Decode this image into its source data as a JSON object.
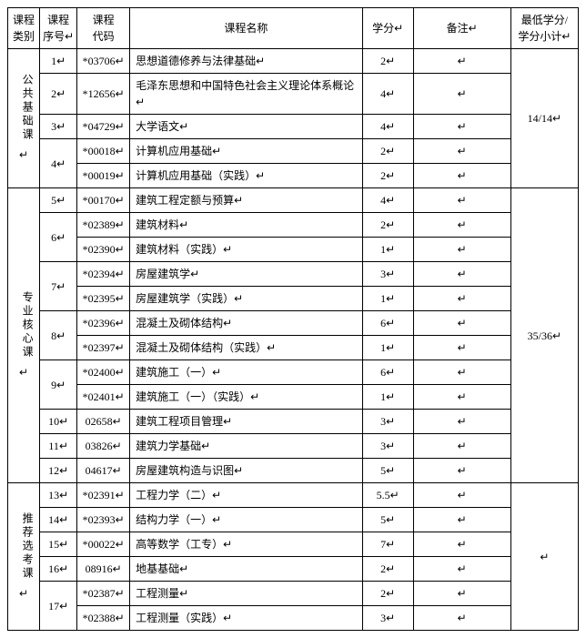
{
  "headers": {
    "category": "课程\n类别",
    "seq": "课程\n序号",
    "code": "课程\n代码",
    "name": "课程名称",
    "credit": "学分",
    "note": "备注",
    "subtotal": "最低学分/\n学分小计"
  },
  "enter_mark": "↵",
  "categories": [
    {
      "label": "公共基础课",
      "subtotal": "14/14",
      "rows": [
        {
          "seq": "1",
          "code": "*03706",
          "name": "思想道德修养与法律基础",
          "credit": "2",
          "note": ""
        },
        {
          "seq": "2",
          "code": "*12656",
          "name": "毛泽东思想和中国特色社会主义理论体系概论",
          "credit": "4",
          "note": ""
        },
        {
          "seq": "3",
          "code": "*04729",
          "name": "大学语文",
          "credit": "4",
          "note": ""
        },
        {
          "seq": "4",
          "seq_span": 2,
          "code": "*00018",
          "name": "计算机应用基础",
          "credit": "2",
          "note": ""
        },
        {
          "code": "*00019",
          "name": "计算机应用基础（实践）",
          "credit": "2",
          "note": ""
        }
      ]
    },
    {
      "label": "专业核心课",
      "subtotal": "35/36",
      "rows": [
        {
          "seq": "5",
          "code": "*00170",
          "name": "建筑工程定额与预算",
          "credit": "4",
          "note": ""
        },
        {
          "seq": "6",
          "seq_span": 2,
          "code": "*02389",
          "name": "建筑材料",
          "credit": "2",
          "note": ""
        },
        {
          "code": "*02390",
          "name": "建筑材料（实践）",
          "credit": "1",
          "note": ""
        },
        {
          "seq": "7",
          "seq_span": 2,
          "code": "*02394",
          "name": "房屋建筑学",
          "credit": "3",
          "note": ""
        },
        {
          "code": "*02395",
          "name": "房屋建筑学（实践）",
          "credit": "1",
          "note": ""
        },
        {
          "seq": "8",
          "seq_span": 2,
          "code": "*02396",
          "name": "混凝土及砌体结构",
          "credit": "6",
          "note": ""
        },
        {
          "code": "*02397",
          "name": "混凝土及砌体结构（实践）",
          "credit": "1",
          "note": ""
        },
        {
          "seq": "9",
          "seq_span": 2,
          "code": "*02400",
          "name": "建筑施工（一）",
          "credit": "6",
          "note": ""
        },
        {
          "code": "*02401",
          "name": "建筑施工（一）（实践）",
          "credit": "1",
          "note": ""
        },
        {
          "seq": "10",
          "code": "02658",
          "name": "建筑工程项目管理",
          "credit": "3",
          "note": ""
        },
        {
          "seq": "11",
          "code": "03826",
          "name": "建筑力学基础",
          "credit": "3",
          "note": ""
        },
        {
          "seq": "12",
          "code": "04617",
          "name": "房屋建筑构造与识图",
          "credit": "5",
          "note": ""
        }
      ]
    },
    {
      "label": "推荐选考课",
      "subtotal": "",
      "rows": [
        {
          "seq": "13",
          "code": "*02391",
          "name": "工程力学（二）",
          "credit": "5.5",
          "note": ""
        },
        {
          "seq": "14",
          "code": "*02393",
          "name": "结构力学（一）",
          "credit": "5",
          "note": ""
        },
        {
          "seq": "15",
          "code": "*00022",
          "name": "高等数学（工专）",
          "credit": "7",
          "note": ""
        },
        {
          "seq": "16",
          "code": "08916",
          "name": "地基基础",
          "credit": "2",
          "note": ""
        },
        {
          "seq": "17",
          "seq_span": 2,
          "code": "*02387",
          "name": "工程测量",
          "credit": "2",
          "note": ""
        },
        {
          "code": "*02388",
          "name": "工程测量（实践）",
          "credit": "3",
          "note": ""
        }
      ]
    }
  ]
}
